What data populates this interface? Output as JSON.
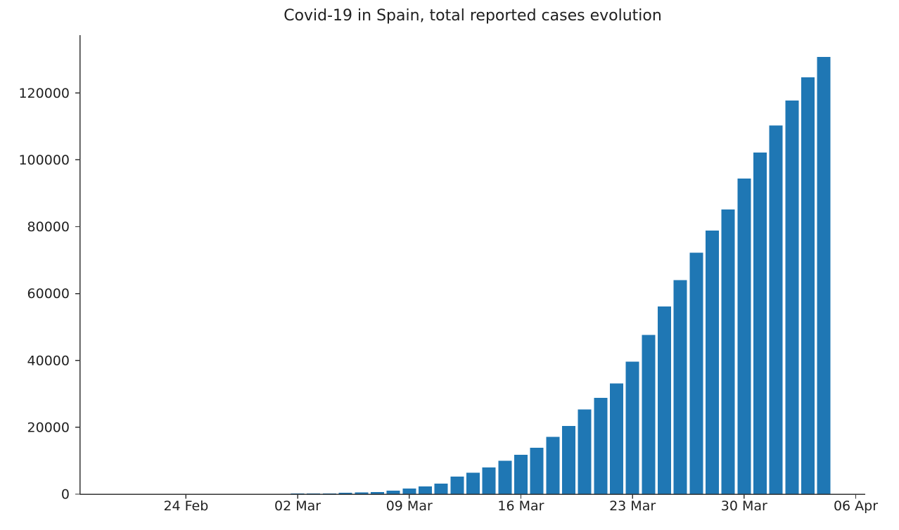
{
  "chart_data": {
    "type": "bar",
    "title": "Covid-19 in Spain, total reported cases evolution",
    "xlabel": "",
    "ylabel": "",
    "bar_color": "#1f77b4",
    "background_color": "#ffffff",
    "grid": false,
    "legend": null,
    "ylim": [
      0,
      137300
    ],
    "yticks": [
      0,
      20000,
      40000,
      60000,
      80000,
      100000,
      120000
    ],
    "ytick_labels": [
      "0",
      "20000",
      "40000",
      "60000",
      "80000",
      "100000",
      "120000"
    ],
    "xticks": [
      {
        "label": "24 Feb",
        "day_index": 4
      },
      {
        "label": "02 Mar",
        "day_index": 11
      },
      {
        "label": "09 Mar",
        "day_index": 18
      },
      {
        "label": "16 Mar",
        "day_index": 25
      },
      {
        "label": "23 Mar",
        "day_index": 32
      },
      {
        "label": "30 Mar",
        "day_index": 39
      },
      {
        "label": "06 Apr",
        "day_index": 46
      }
    ],
    "x": [
      "2020-02-20",
      "2020-02-21",
      "2020-02-22",
      "2020-02-23",
      "2020-02-24",
      "2020-02-25",
      "2020-02-26",
      "2020-02-27",
      "2020-02-28",
      "2020-02-29",
      "2020-03-01",
      "2020-03-02",
      "2020-03-03",
      "2020-03-04",
      "2020-03-05",
      "2020-03-06",
      "2020-03-07",
      "2020-03-08",
      "2020-03-09",
      "2020-03-10",
      "2020-03-11",
      "2020-03-12",
      "2020-03-13",
      "2020-03-14",
      "2020-03-15",
      "2020-03-16",
      "2020-03-17",
      "2020-03-18",
      "2020-03-19",
      "2020-03-20",
      "2020-03-21",
      "2020-03-22",
      "2020-03-23",
      "2020-03-24",
      "2020-03-25",
      "2020-03-26",
      "2020-03-27",
      "2020-03-28",
      "2020-03-29",
      "2020-03-30",
      "2020-03-31",
      "2020-04-01",
      "2020-04-02",
      "2020-04-03",
      "2020-04-04"
    ],
    "values": [
      3,
      4,
      4,
      5,
      6,
      13,
      15,
      32,
      45,
      84,
      120,
      165,
      222,
      259,
      400,
      500,
      673,
      1073,
      1695,
      2277,
      3146,
      5232,
      6391,
      7988,
      9942,
      11748,
      13910,
      17147,
      20410,
      25374,
      28768,
      33089,
      39673,
      47610,
      56188,
      64059,
      72248,
      78797,
      85195,
      94417,
      102136,
      110238,
      117710,
      124736,
      130759
    ]
  }
}
